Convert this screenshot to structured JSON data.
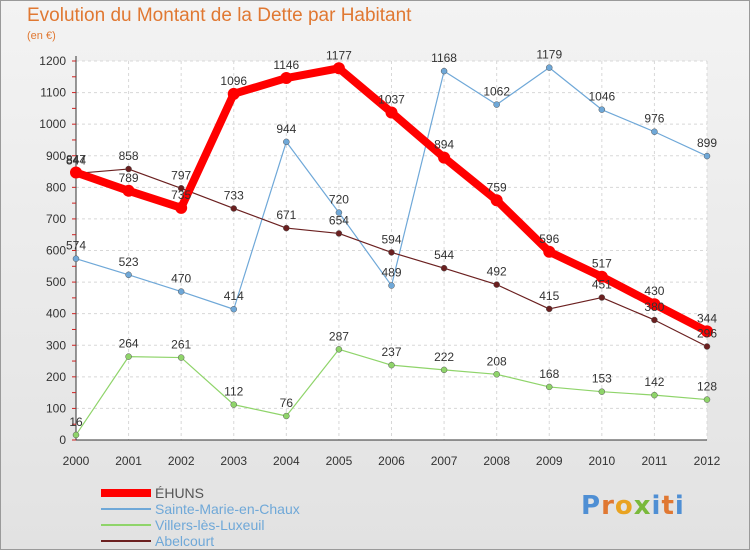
{
  "title": "Evolution du Montant de la Dette par Habitant",
  "subtitle": "(en €)",
  "logo": "Proxiti",
  "chart_data": {
    "type": "line",
    "x": [
      "2000",
      "2001",
      "2002",
      "2003",
      "2004",
      "2005",
      "2006",
      "2007",
      "2008",
      "2009",
      "2010",
      "2011",
      "2012"
    ],
    "ylim": [
      0,
      1200
    ],
    "yticks": [
      0,
      100,
      200,
      300,
      400,
      500,
      600,
      700,
      800,
      900,
      1000,
      1100,
      1200
    ],
    "grid": true,
    "legend_position": "bottom-left",
    "series": [
      {
        "name": "ÉHUNS",
        "color": "#ff0000",
        "width": 8,
        "marker": 6,
        "values": [
          847,
          789,
          735,
          1096,
          1146,
          1177,
          1037,
          894,
          759,
          596,
          517,
          430,
          344
        ]
      },
      {
        "name": "Sainte-Marie-en-Chaux",
        "color": "#6fa8d8",
        "width": 1.2,
        "marker": 3,
        "values": [
          574,
          523,
          470,
          414,
          944,
          720,
          489,
          1168,
          1062,
          1179,
          1046,
          976,
          899
        ]
      },
      {
        "name": "Villers-lès-Luxeuil",
        "color": "#8fd46a",
        "width": 1.2,
        "marker": 3,
        "values": [
          16,
          264,
          261,
          112,
          76,
          287,
          237,
          222,
          208,
          168,
          153,
          142,
          128
        ]
      },
      {
        "name": "Abelcourt",
        "color": "#6b2020",
        "width": 1.2,
        "marker": 3,
        "values": [
          844,
          858,
          797,
          733,
          671,
          654,
          594,
          544,
          492,
          415,
          451,
          380,
          296
        ]
      }
    ],
    "data_labels": [
      {
        "series": 0,
        "labels": [
          "847",
          "789",
          "735",
          "1096",
          "1146",
          "1177",
          "1037",
          "894",
          "759",
          "596",
          "517",
          "430",
          "344"
        ]
      },
      {
        "series": 1,
        "labels": [
          "574",
          "523",
          "470",
          "414",
          "944",
          "720",
          "489",
          "1168",
          "1062",
          "1179",
          "1046",
          "976",
          "899"
        ]
      },
      {
        "series": 2,
        "labels": [
          "16",
          "264",
          "261",
          "112",
          "76",
          "287",
          "237",
          "222",
          "208",
          "168",
          "153",
          "142",
          "128"
        ]
      },
      {
        "series": 3,
        "labels": [
          "844",
          "858",
          "797",
          "733",
          "671",
          "654",
          "594",
          "544",
          "492",
          "415",
          "451",
          "380",
          "296"
        ]
      }
    ]
  }
}
